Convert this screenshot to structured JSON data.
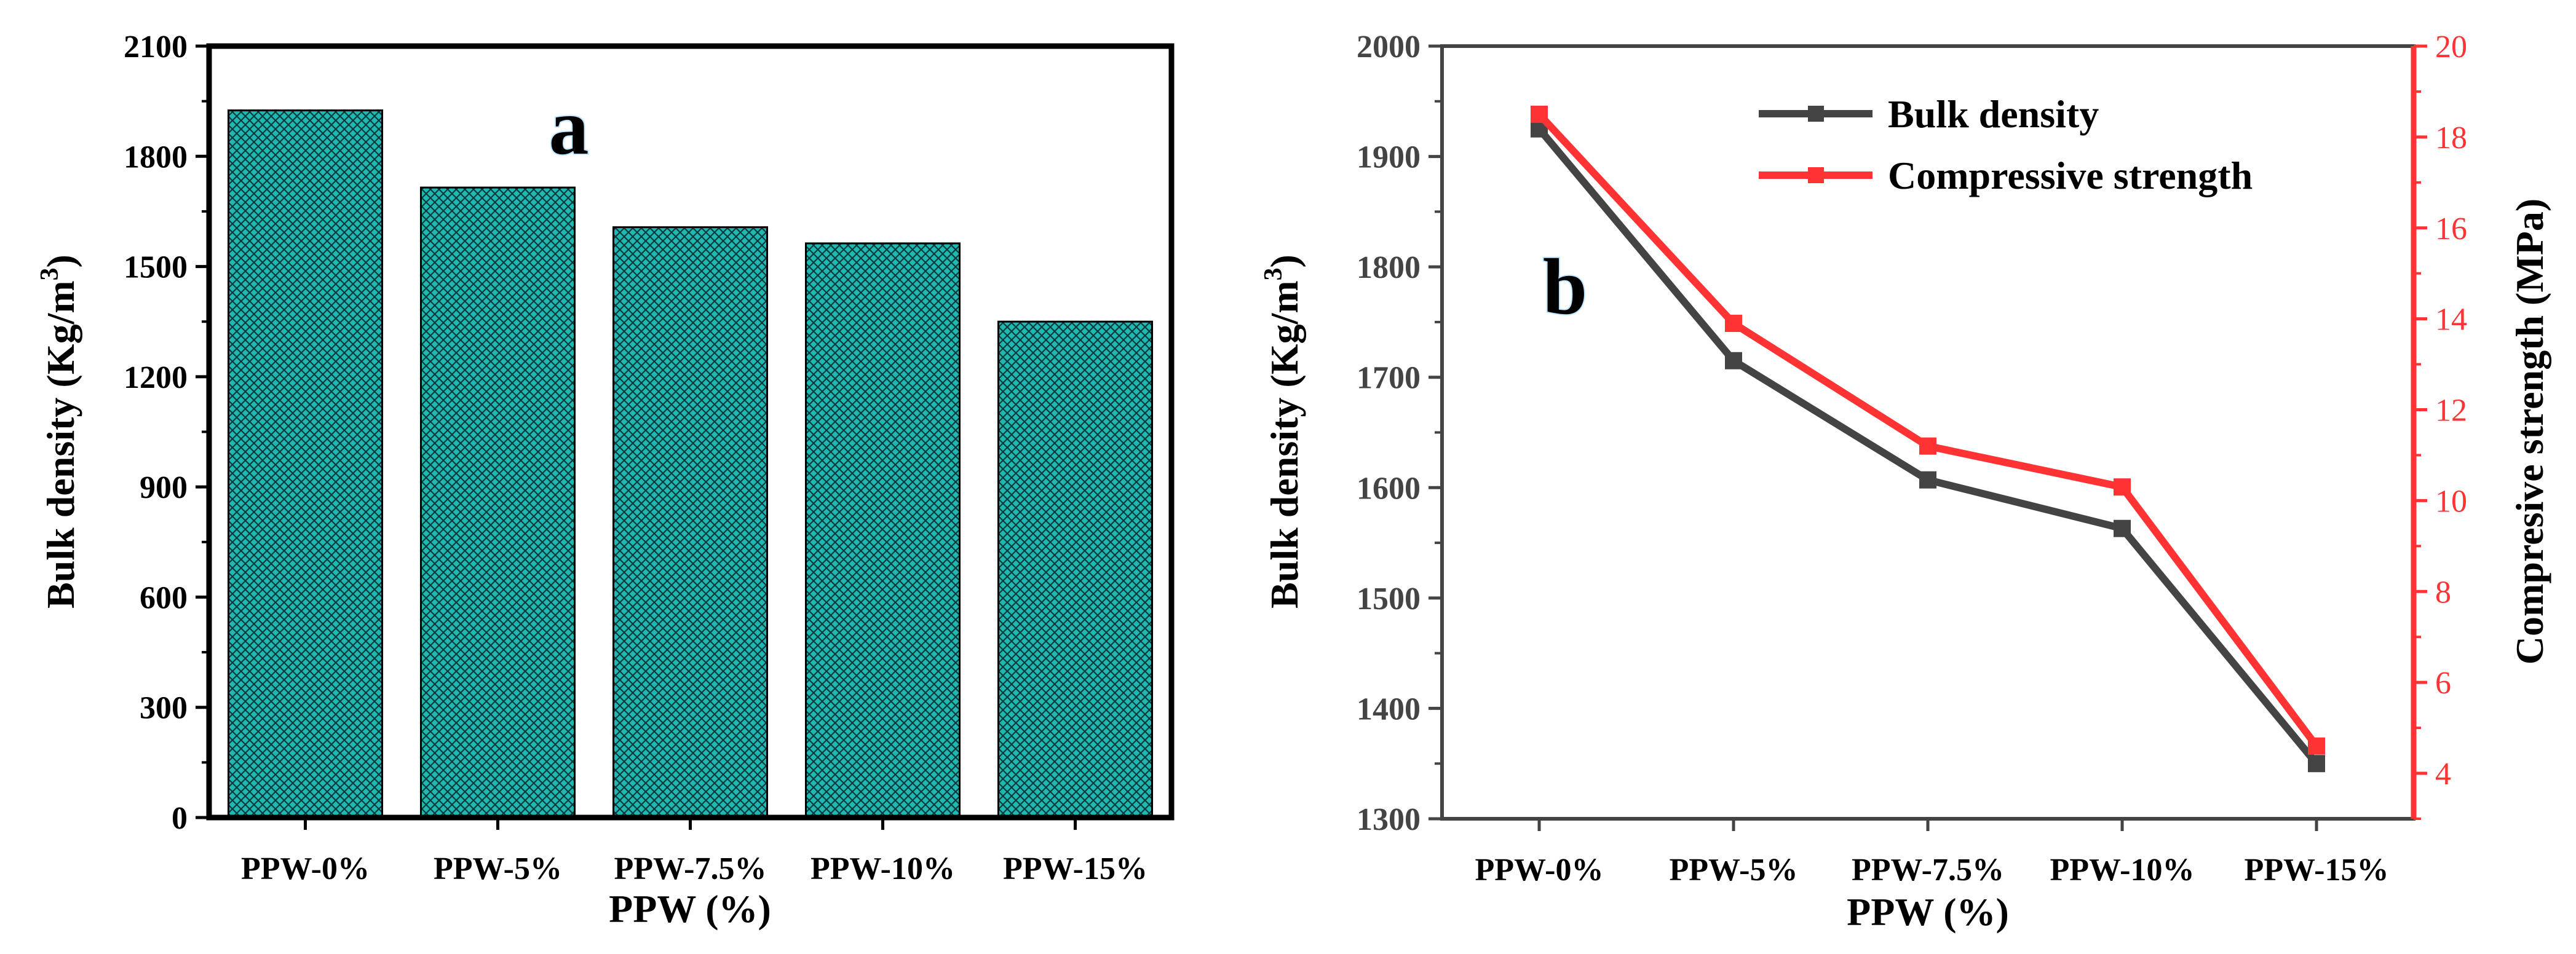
{
  "chart_data": [
    {
      "type": "bar",
      "panel_label": "a",
      "categories": [
        "PPW-0%",
        "PPW-5%",
        "PPW-7.5%",
        "PPW-10%",
        "PPW-15%"
      ],
      "values": [
        1925,
        1715,
        1607,
        1563,
        1350
      ],
      "xlabel": "PPW (%)",
      "ylabel_main": "Bulk density (Kg/m",
      "ylabel_sup": "3",
      "ylabel_close": ")",
      "ylim": [
        0,
        2100
      ],
      "yticks": [
        0,
        300,
        600,
        900,
        1200,
        1500,
        1800,
        2100
      ],
      "bar_color": "#1fb5b0"
    },
    {
      "type": "line",
      "panel_label": "b",
      "categories": [
        "PPW-0%",
        "PPW-5%",
        "PPW-7.5%",
        "PPW-10%",
        "PPW-15%"
      ],
      "series": [
        {
          "name": "Bulk density",
          "axis": "left",
          "color": "#444444",
          "values": [
            1925,
            1715,
            1607,
            1563,
            1350
          ]
        },
        {
          "name": "Compressive strength",
          "axis": "right",
          "color": "#ff3333",
          "values": [
            18.5,
            13.9,
            11.2,
            10.3,
            4.6
          ]
        }
      ],
      "xlabel": "PPW (%)",
      "ylabel_main": "Bulk density (Kg/m",
      "ylabel_sup": "3",
      "ylabel_close": ")",
      "y2label": "Compresive strength (MPa)",
      "ylim": [
        1300,
        2000
      ],
      "yticks": [
        1300,
        1400,
        1500,
        1600,
        1700,
        1800,
        1900,
        2000
      ],
      "y2lim": [
        3,
        20
      ],
      "y2ticks": [
        4,
        6,
        8,
        10,
        12,
        14,
        16,
        18,
        20
      ],
      "legend_position": "top-right"
    }
  ]
}
